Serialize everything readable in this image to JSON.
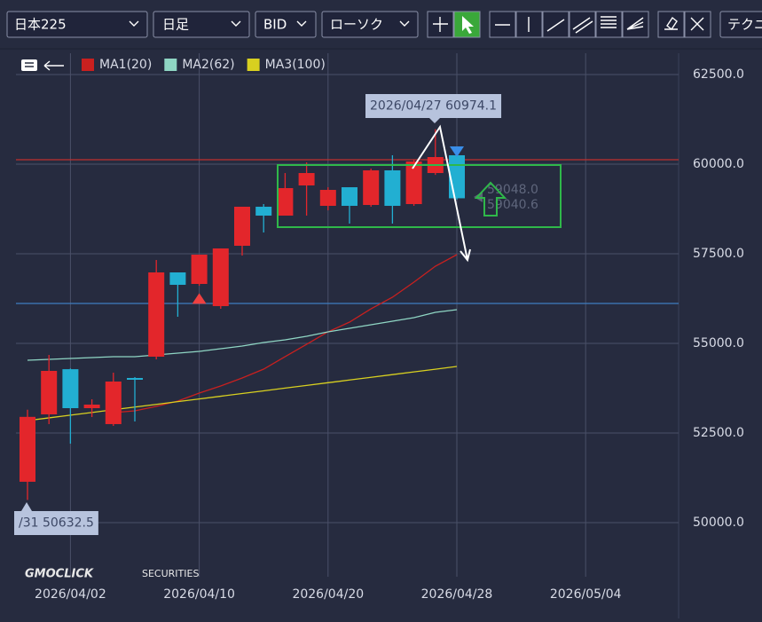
{
  "toolbar": {
    "symbol": "日本225",
    "period": "日足",
    "price_type": "BID",
    "chart_style": "ローソク",
    "technical": "テクニ"
  },
  "logo": {
    "brand": "GMOCLICK",
    "sub": "SECURITIES"
  },
  "chart_data": {
    "type": "candlestick",
    "categories": [
      null,
      null,
      "2026/04/02",
      null,
      null,
      null,
      null,
      null,
      "2026/04/10",
      null,
      null,
      null,
      null,
      null,
      "2026/04/20",
      null,
      null,
      null,
      null,
      null,
      "2026/04/28",
      null,
      null,
      null,
      null,
      null,
      "2026/05/04"
    ],
    "open": [
      51140,
      53020,
      54280,
      53193,
      52748,
      54035,
      54629,
      56980,
      56658,
      56040,
      57723,
      58812,
      58564,
      59406,
      58837,
      59356,
      58861,
      59827,
      58886,
      59752,
      60248,
      null,
      null,
      null,
      null,
      null,
      null
    ],
    "high": [
      53150,
      54678,
      54300,
      53440,
      54183,
      54060,
      57327,
      56980,
      57475,
      57649,
      58812,
      58886,
      59752,
      60050,
      59356,
      59356,
      59876,
      60248,
      60124,
      60974.1,
      60446,
      null,
      null,
      null,
      null,
      null,
      null
    ],
    "low": [
      50632.5,
      52748,
      52203,
      52945,
      52698,
      52822,
      54554,
      55743,
      56609,
      55965,
      57450,
      58094,
      58564,
      58564,
      58713,
      58342,
      58812,
      58342,
      58837,
      59700,
      59010,
      null,
      null,
      null,
      null,
      null,
      null
    ],
    "close": [
      52950,
      54233,
      53193,
      53292,
      53936,
      53985,
      56980,
      56634,
      57475,
      57649,
      58812,
      58564,
      59332,
      59752,
      59282,
      58837,
      59827,
      58837,
      60074,
      60198,
      59048,
      null,
      null,
      null,
      null,
      null,
      null
    ],
    "up_color": "#e3262b",
    "down_color": "#22afd2",
    "moving_averages": [
      {
        "name": "MA1(20)",
        "color": "#c9201f",
        "values": [
          null,
          null,
          null,
          null,
          53069,
          53119,
          53243,
          53391,
          53614,
          53812,
          54035,
          54282,
          54629,
          54975,
          55322,
          55594,
          55965,
          56287,
          56708,
          57153,
          57475,
          null,
          null,
          null,
          null,
          null,
          null
        ]
      },
      {
        "name": "MA2(62)",
        "color": "#8fd6c4",
        "values": [
          54530,
          54554,
          54579,
          54604,
          54629,
          54629,
          54678,
          54728,
          54777,
          54851,
          54926,
          55025,
          55099,
          55198,
          55322,
          55421,
          55520,
          55619,
          55718,
          55866,
          55941,
          null,
          null,
          null,
          null,
          null,
          null
        ]
      },
      {
        "name": "MA3(100)",
        "color": "#d8d020",
        "values": [
          52847,
          52922,
          52998,
          53073,
          53149,
          53224,
          53299,
          53375,
          53450,
          53526,
          53601,
          53676,
          53752,
          53827,
          53903,
          53978,
          54053,
          54129,
          54204,
          54280,
          54356,
          null,
          null,
          null,
          null,
          null,
          null
        ]
      }
    ],
    "hlines": [
      {
        "value": 60124,
        "color": "#c0302e"
      },
      {
        "value": 56114,
        "color": "#3f7cc0"
      }
    ],
    "ylim": [
      48490,
      63094
    ],
    "yticks": [
      {
        "value": 50000,
        "label": "50000.0"
      },
      {
        "value": 52500,
        "label": "52500.0"
      },
      {
        "value": 55000,
        "label": "55000.0"
      },
      {
        "value": 57500,
        "label": "57500.0"
      },
      {
        "value": 60000,
        "label": "60000.0"
      },
      {
        "value": 62500,
        "label": "62500.0"
      }
    ],
    "grid": true,
    "high_label": "2026/04/27 60974.1",
    "low_label": "/31 50632.5",
    "price_labels": [
      "59048.0",
      "59040.6"
    ]
  }
}
